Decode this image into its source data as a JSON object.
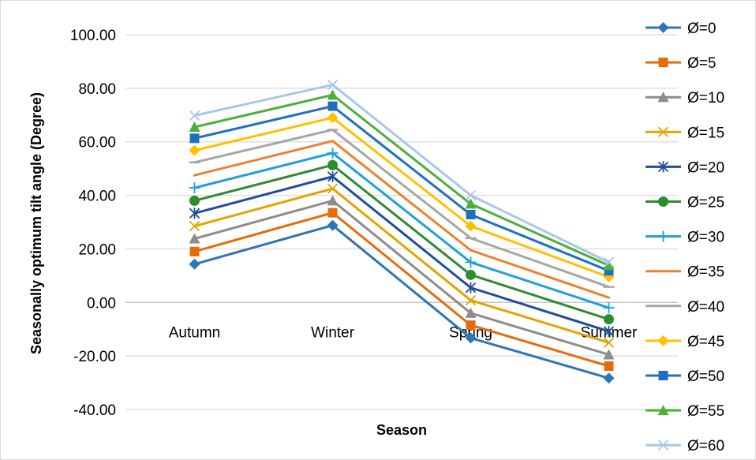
{
  "chart_data": {
    "type": "line",
    "title": "",
    "xlabel": "Season",
    "ylabel": "Seasonally optimum tilt angle (Degree)",
    "categories": [
      "Autumn",
      "Winter",
      "Spring",
      "Summer"
    ],
    "ylim": [
      -40,
      100
    ],
    "ytick_step": 20,
    "ytick_labels": [
      "-40.00",
      "-20.00",
      "0.00",
      "20.00",
      "40.00",
      "60.00",
      "80.00",
      "100.00"
    ],
    "grid": "horizontal major",
    "legend_position": "right",
    "series": [
      {
        "name": "Ø=0",
        "values": [
          14.3,
          28.8,
          -13.3,
          -28.3
        ],
        "color": "#2e75b6",
        "marker": "diamond"
      },
      {
        "name": "Ø=5",
        "values": [
          19.0,
          33.5,
          -8.5,
          -23.8
        ],
        "color": "#e46c0a",
        "marker": "square"
      },
      {
        "name": "Ø=10",
        "values": [
          23.8,
          38.0,
          -4.0,
          -19.5
        ],
        "color": "#8c8c8c",
        "marker": "triangle"
      },
      {
        "name": "Ø=15",
        "values": [
          28.5,
          42.5,
          0.8,
          -15.0
        ],
        "color": "#e3a400",
        "marker": "x"
      },
      {
        "name": "Ø=20",
        "values": [
          33.3,
          47.0,
          5.5,
          -10.8
        ],
        "color": "#1f4e9c",
        "marker": "star"
      },
      {
        "name": "Ø=25",
        "values": [
          38.0,
          51.3,
          10.3,
          -6.3
        ],
        "color": "#2e8b2e",
        "marker": "circle"
      },
      {
        "name": "Ø=30",
        "values": [
          42.8,
          55.8,
          15.0,
          -2.0
        ],
        "color": "#1fa0dc",
        "marker": "plus"
      },
      {
        "name": "Ø=35",
        "values": [
          47.5,
          60.3,
          19.5,
          1.8
        ],
        "color": "#f07f2d",
        "marker": "none"
      },
      {
        "name": "Ø=40",
        "values": [
          52.3,
          64.5,
          24.0,
          5.8
        ],
        "color": "#a6a6a6",
        "marker": "dash"
      },
      {
        "name": "Ø=45",
        "values": [
          56.8,
          69.0,
          28.5,
          9.5
        ],
        "color": "#ffc000",
        "marker": "diamond"
      },
      {
        "name": "Ø=50",
        "values": [
          61.3,
          73.3,
          32.8,
          11.8
        ],
        "color": "#1f6fc0",
        "marker": "square"
      },
      {
        "name": "Ø=55",
        "values": [
          65.5,
          77.5,
          36.8,
          13.8
        ],
        "color": "#4caf3a",
        "marker": "triangle"
      },
      {
        "name": "Ø=60",
        "values": [
          69.8,
          81.3,
          40.0,
          15.0
        ],
        "color": "#a9c7e8",
        "marker": "x"
      }
    ]
  }
}
